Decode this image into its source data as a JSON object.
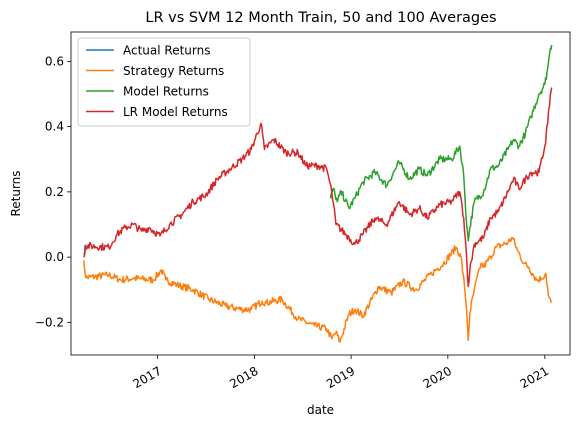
{
  "chart_data": {
    "type": "line",
    "title": "LR vs SVM 12 Month Train, 50 and 100 Averages",
    "xlabel": "date",
    "ylabel": "Returns",
    "xlim": [
      "2016-02-09",
      "2021-04-06"
    ],
    "ylim": [
      -0.3,
      0.69
    ],
    "x_ticks": [
      {
        "date": "2017-01-01",
        "label": "2017"
      },
      {
        "date": "2018-01-01",
        "label": "2018"
      },
      {
        "date": "2019-01-01",
        "label": "2019"
      },
      {
        "date": "2020-01-01",
        "label": "2020"
      },
      {
        "date": "2021-01-01",
        "label": "2021"
      }
    ],
    "y_ticks": [
      {
        "value": -0.2,
        "label": "−0.2"
      },
      {
        "value": 0.0,
        "label": "0.0"
      },
      {
        "value": 0.2,
        "label": "0.2"
      },
      {
        "value": 0.4,
        "label": "0.4"
      },
      {
        "value": 0.6,
        "label": "0.6"
      }
    ],
    "grid": false,
    "legend_position": "top-left",
    "series": [
      {
        "name": "Actual Returns",
        "color": "#1f77b4",
        "points": [
          [
            "2016-03-28",
            0.01
          ],
          [
            "2016-04-05",
            0.035
          ]
        ]
      },
      {
        "name": "Strategy Returns",
        "color": "#ff7f0e",
        "points": [
          [
            "2016-03-28",
            -0.01
          ],
          [
            "2016-04-05",
            -0.063
          ],
          [
            "2016-07-01",
            -0.055
          ],
          [
            "2016-08-15",
            -0.07
          ],
          [
            "2016-10-01",
            -0.065
          ],
          [
            "2016-12-15",
            -0.07
          ],
          [
            "2017-01-15",
            -0.04
          ],
          [
            "2017-02-01",
            -0.07
          ],
          [
            "2017-03-15",
            -0.085
          ],
          [
            "2017-05-15",
            -0.1
          ],
          [
            "2017-07-15",
            -0.13
          ],
          [
            "2017-09-15",
            -0.15
          ],
          [
            "2017-11-15",
            -0.16
          ],
          [
            "2017-12-20",
            -0.16
          ],
          [
            "2018-01-30",
            -0.135
          ],
          [
            "2018-02-15",
            -0.14
          ],
          [
            "2018-04-15",
            -0.13
          ],
          [
            "2018-06-15",
            -0.19
          ],
          [
            "2018-08-15",
            -0.21
          ],
          [
            "2018-10-01",
            -0.22
          ],
          [
            "2018-10-20",
            -0.25
          ],
          [
            "2018-11-05",
            -0.23
          ],
          [
            "2018-11-20",
            -0.26
          ],
          [
            "2018-12-24",
            -0.175
          ],
          [
            "2019-01-15",
            -0.16
          ],
          [
            "2019-02-15",
            -0.18
          ],
          [
            "2019-04-15",
            -0.09
          ],
          [
            "2019-06-01",
            -0.11
          ],
          [
            "2019-07-15",
            -0.075
          ],
          [
            "2019-09-01",
            -0.1
          ],
          [
            "2019-11-01",
            -0.05
          ],
          [
            "2019-12-15",
            -0.02
          ],
          [
            "2020-02-01",
            0.03
          ],
          [
            "2020-02-20",
            0.0
          ],
          [
            "2020-03-05",
            -0.1
          ],
          [
            "2020-03-12",
            -0.16
          ],
          [
            "2020-03-18",
            -0.255
          ],
          [
            "2020-03-24",
            -0.17
          ],
          [
            "2020-04-10",
            -0.1
          ],
          [
            "2020-05-05",
            -0.02
          ],
          [
            "2020-05-15",
            -0.03
          ],
          [
            "2020-06-10",
            0.0
          ],
          [
            "2020-07-01",
            0.03
          ],
          [
            "2020-08-15",
            0.045
          ],
          [
            "2020-09-01",
            0.06
          ],
          [
            "2020-09-20",
            0.02
          ],
          [
            "2020-10-15",
            -0.02
          ],
          [
            "2020-11-01",
            -0.03
          ],
          [
            "2020-11-15",
            -0.05
          ],
          [
            "2020-12-01",
            -0.07
          ],
          [
            "2020-12-20",
            -0.065
          ],
          [
            "2021-01-05",
            -0.05
          ],
          [
            "2021-01-15",
            -0.12
          ],
          [
            "2021-01-25",
            -0.14
          ]
        ]
      },
      {
        "name": "Model Returns",
        "color": "#2ca02c",
        "points": [
          [
            "2018-10-15",
            0.18
          ],
          [
            "2018-10-25",
            0.21
          ],
          [
            "2018-11-10",
            0.17
          ],
          [
            "2018-11-25",
            0.2
          ],
          [
            "2018-12-24",
            0.15
          ],
          [
            "2019-01-15",
            0.18
          ],
          [
            "2019-02-15",
            0.23
          ],
          [
            "2019-04-01",
            0.26
          ],
          [
            "2019-05-15",
            0.22
          ],
          [
            "2019-07-01",
            0.29
          ],
          [
            "2019-08-10",
            0.24
          ],
          [
            "2019-09-15",
            0.27
          ],
          [
            "2019-10-15",
            0.25
          ],
          [
            "2019-12-01",
            0.3
          ],
          [
            "2020-01-15",
            0.3
          ],
          [
            "2020-02-15",
            0.34
          ],
          [
            "2020-03-01",
            0.25
          ],
          [
            "2020-03-12",
            0.1
          ],
          [
            "2020-03-18",
            0.05
          ],
          [
            "2020-03-24",
            0.09
          ],
          [
            "2020-04-10",
            0.17
          ],
          [
            "2020-05-15",
            0.2
          ],
          [
            "2020-06-10",
            0.27
          ],
          [
            "2020-07-10",
            0.28
          ],
          [
            "2020-08-15",
            0.33
          ],
          [
            "2020-09-05",
            0.36
          ],
          [
            "2020-09-25",
            0.34
          ],
          [
            "2020-10-20",
            0.38
          ],
          [
            "2020-11-10",
            0.43
          ],
          [
            "2020-12-10",
            0.5
          ],
          [
            "2021-01-01",
            0.53
          ],
          [
            "2021-01-12",
            0.58
          ],
          [
            "2021-01-22",
            0.64
          ],
          [
            "2021-01-27",
            0.65
          ]
        ]
      },
      {
        "name": "LR Model Returns",
        "color": "#d62728",
        "points": [
          [
            "2016-03-28",
            0.0
          ],
          [
            "2016-04-05",
            0.035
          ],
          [
            "2016-07-01",
            0.03
          ],
          [
            "2016-08-01",
            0.07
          ],
          [
            "2016-09-01",
            0.09
          ],
          [
            "2016-10-01",
            0.1
          ],
          [
            "2016-11-01",
            0.08
          ],
          [
            "2016-12-01",
            0.09
          ],
          [
            "2017-01-10",
            0.065
          ],
          [
            "2017-02-15",
            0.1
          ],
          [
            "2017-04-01",
            0.13
          ],
          [
            "2017-05-15",
            0.17
          ],
          [
            "2017-07-01",
            0.19
          ],
          [
            "2017-08-15",
            0.24
          ],
          [
            "2017-10-01",
            0.27
          ],
          [
            "2017-11-15",
            0.3
          ],
          [
            "2017-12-20",
            0.33
          ],
          [
            "2018-01-26",
            0.41
          ],
          [
            "2018-02-08",
            0.33
          ],
          [
            "2018-03-15",
            0.36
          ],
          [
            "2018-05-01",
            0.32
          ],
          [
            "2018-06-15",
            0.32
          ],
          [
            "2018-07-15",
            0.28
          ],
          [
            "2018-09-01",
            0.28
          ],
          [
            "2018-10-01",
            0.27
          ],
          [
            "2018-10-20",
            0.2
          ],
          [
            "2018-11-05",
            0.1
          ],
          [
            "2018-12-24",
            0.06
          ],
          [
            "2019-01-15",
            0.04
          ],
          [
            "2019-02-15",
            0.07
          ],
          [
            "2019-04-01",
            0.12
          ],
          [
            "2019-05-15",
            0.1
          ],
          [
            "2019-07-01",
            0.17
          ],
          [
            "2019-08-10",
            0.13
          ],
          [
            "2019-09-15",
            0.15
          ],
          [
            "2019-10-15",
            0.12
          ],
          [
            "2019-12-01",
            0.16
          ],
          [
            "2020-01-15",
            0.17
          ],
          [
            "2020-02-15",
            0.2
          ],
          [
            "2020-03-01",
            0.12
          ],
          [
            "2020-03-12",
            0.0
          ],
          [
            "2020-03-18",
            -0.09
          ],
          [
            "2020-03-24",
            -0.04
          ],
          [
            "2020-04-10",
            0.04
          ],
          [
            "2020-05-15",
            0.06
          ],
          [
            "2020-06-10",
            0.12
          ],
          [
            "2020-07-10",
            0.14
          ],
          [
            "2020-08-15",
            0.2
          ],
          [
            "2020-09-05",
            0.24
          ],
          [
            "2020-09-25",
            0.21
          ],
          [
            "2020-10-20",
            0.24
          ],
          [
            "2020-11-10",
            0.26
          ],
          [
            "2020-12-10",
            0.26
          ],
          [
            "2021-01-01",
            0.34
          ],
          [
            "2021-01-12",
            0.41
          ],
          [
            "2021-01-22",
            0.5
          ],
          [
            "2021-01-27",
            0.52
          ]
        ]
      }
    ]
  }
}
